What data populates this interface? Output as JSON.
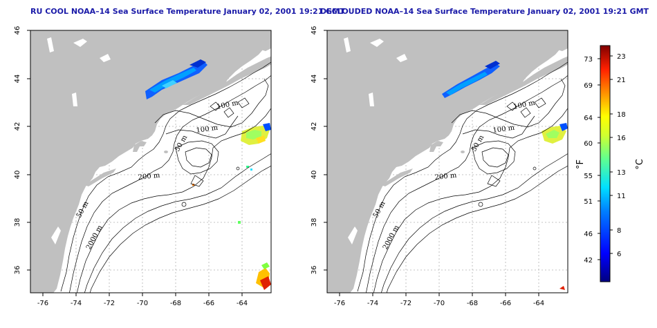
{
  "panels": [
    {
      "id": "left",
      "title": "RU COOL NOAA–14 Sea Surface Temperature January 02, 2001 19:21 GMT"
    },
    {
      "id": "right",
      "title": "DECLOUDED NOAA–14 Sea Surface Temperature January 02, 2001 19:21 GMT"
    }
  ],
  "axes": {
    "x_ticks": [
      "-76",
      "-74",
      "-72",
      "-70",
      "-68",
      "-66",
      "-64"
    ],
    "y_ticks": [
      "46",
      "44",
      "42",
      "40",
      "38",
      "36"
    ]
  },
  "contours": {
    "labels": [
      "100 m",
      "100 m",
      "50 m",
      "200 m",
      "50 m",
      "2000 m"
    ]
  },
  "colorbar": {
    "fahrenheit_ticks": [
      "73",
      "69",
      "64",
      "60",
      "55",
      "51",
      "46",
      "42"
    ],
    "celsius_ticks": [
      "23",
      "21",
      "18",
      "16",
      "13",
      "11",
      "8",
      "6"
    ],
    "fahrenheit_unit": "°F",
    "celsius_unit": "°C"
  },
  "colors": {
    "title": "#1a1aa8",
    "land": "#c0c0c0",
    "ocean": "#ffffff",
    "grid": "#b0b0b0"
  }
}
